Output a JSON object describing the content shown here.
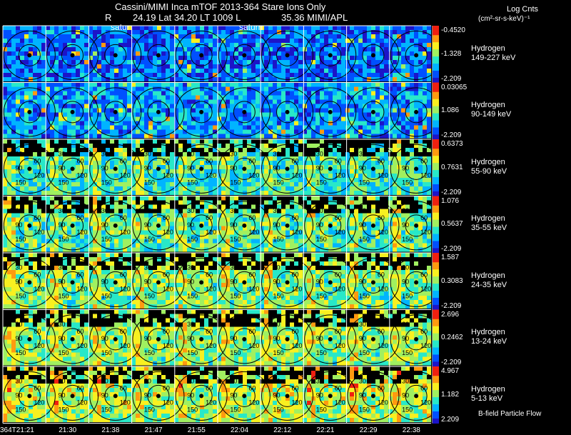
{
  "header": {
    "title": "Cassini/MIMI Inca mTOF  2013-364   Stare   Ions Only",
    "line2_R_label": "R",
    "line2_values": "24.19 Lat 34.20 LT 1009 L",
    "line2_L_value": "35.36  MIMI/APL",
    "saturn_labels": [
      "satur",
      "saturn"
    ]
  },
  "colorbar_title": {
    "line1": "Log Cnts",
    "line2": "(cm²-sr-s-keV)⁻¹"
  },
  "footer_label": "B-field Particle Flow",
  "chart_data": {
    "type": "heatmap",
    "title": "Cassini/MIMI Inca mTOF  2013-364   Stare   Ions Only",
    "x_tick_labels": [
      "364T21:21",
      "21:30",
      "21:38",
      "21:47",
      "21:55",
      "22:04",
      "22:12",
      "22:21",
      "22:29",
      "22:38"
    ],
    "columns": 10,
    "rows": [
      {
        "species": "Hydrogen",
        "energy": "149-227 keV",
        "cb_max": "-0.4520",
        "cb_mid": "-1.328",
        "cb_min": "-2.209",
        "mean_level": 0.22
      },
      {
        "species": "Hydrogen",
        "energy": "90-149 keV",
        "cb_max": "0.03065",
        "cb_mid": "1.086",
        "cb_min": "-2.209",
        "mean_level": 0.28
      },
      {
        "species": "Hydrogen",
        "energy": "55-90 keV",
        "cb_max": "0.6373",
        "cb_mid": "0.7631",
        "cb_min": "-2.209",
        "mean_level": 0.48
      },
      {
        "species": "Hydrogen",
        "energy": "35-55 keV",
        "cb_max": "1.076",
        "cb_mid": "0.5637",
        "cb_min": "-2.209",
        "mean_level": 0.52
      },
      {
        "species": "Hydrogen",
        "energy": "24-35 keV",
        "cb_max": "1.587",
        "cb_mid": "0.3083",
        "cb_min": "-2.209",
        "mean_level": 0.56
      },
      {
        "species": "Hydrogen",
        "energy": "13-24 keV",
        "cb_max": "2.696",
        "cb_mid": "0.2462",
        "cb_min": "-2.209",
        "mean_level": 0.58
      },
      {
        "species": "Hydrogen",
        "energy": "5-13 keV",
        "cb_max": "4.967",
        "cb_mid": "1.182",
        "cb_min": "2.209",
        "mean_level": 0.62
      }
    ],
    "contour_labels": [
      "30",
      "60",
      "90",
      "120",
      "150"
    ],
    "colorscale": [
      "#1c14c8",
      "#0050ff",
      "#00b4ff",
      "#28e8c8",
      "#a0f060",
      "#f8f020",
      "#ff9a10",
      "#f02010"
    ]
  }
}
